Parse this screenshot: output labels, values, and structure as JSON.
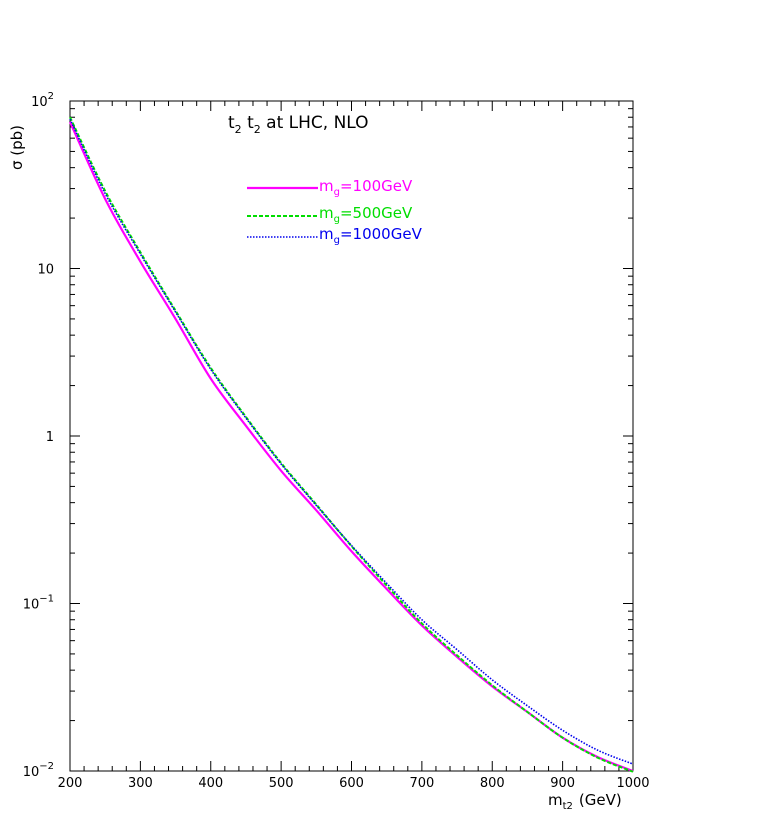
{
  "chart_data": {
    "type": "line",
    "title": "t₂ t₂  at LHC, NLO",
    "title_parts": {
      "p1": "t",
      "s1": "2",
      "p2": " t",
      "s2": "2",
      "rest": "  at LHC, NLO"
    },
    "xlabel": {
      "main": "m",
      "sub": "t2",
      "unit": "(GeV)"
    },
    "ylabel": "σ (pb)",
    "xlim": [
      200,
      1000
    ],
    "ylim": [
      0.01,
      100
    ],
    "yscale": "log",
    "x_ticks": [
      "200",
      "300",
      "400",
      "500",
      "600",
      "700",
      "800",
      "900",
      "1000"
    ],
    "y_ticks": [
      {
        "value": 100,
        "base": "10",
        "exp": "2"
      },
      {
        "value": 10,
        "base": "10",
        "exp": ""
      },
      {
        "value": 1,
        "base": "1",
        "exp": ""
      },
      {
        "value": 0.1,
        "base": "10",
        "exp": "−1"
      },
      {
        "value": 0.01,
        "base": "10",
        "exp": "−2"
      }
    ],
    "legend_position": "top-center",
    "x": [
      200,
      250,
      300,
      350,
      400,
      450,
      500,
      550,
      600,
      650,
      700,
      750,
      800,
      850,
      900,
      950,
      1000
    ],
    "series": [
      {
        "name_main": "m",
        "name_sub": "g",
        "name_rest": "=100GeV",
        "color": "#ff00ff",
        "style": "solid",
        "values": [
          75,
          26,
          11,
          5.0,
          2.2,
          1.15,
          0.62,
          0.36,
          0.205,
          0.122,
          0.074,
          0.048,
          0.032,
          0.0225,
          0.0158,
          0.0121,
          0.01
        ]
      },
      {
        "name_main": "m",
        "name_sub": "g",
        "name_rest": "=500GeV",
        "color": "#00dd00",
        "style": "dashed",
        "values": [
          80,
          29,
          12.5,
          5.6,
          2.55,
          1.3,
          0.69,
          0.39,
          0.22,
          0.128,
          0.076,
          0.049,
          0.0325,
          0.0225,
          0.0158,
          0.012,
          0.0099
        ]
      },
      {
        "name_main": "m",
        "name_sub": "g",
        "name_rest": "=1000GeV",
        "color": "#0000ee",
        "style": "dotted",
        "values": [
          78,
          28,
          12.2,
          5.5,
          2.5,
          1.28,
          0.68,
          0.385,
          0.222,
          0.132,
          0.08,
          0.053,
          0.035,
          0.0245,
          0.0175,
          0.0133,
          0.011
        ]
      }
    ]
  }
}
